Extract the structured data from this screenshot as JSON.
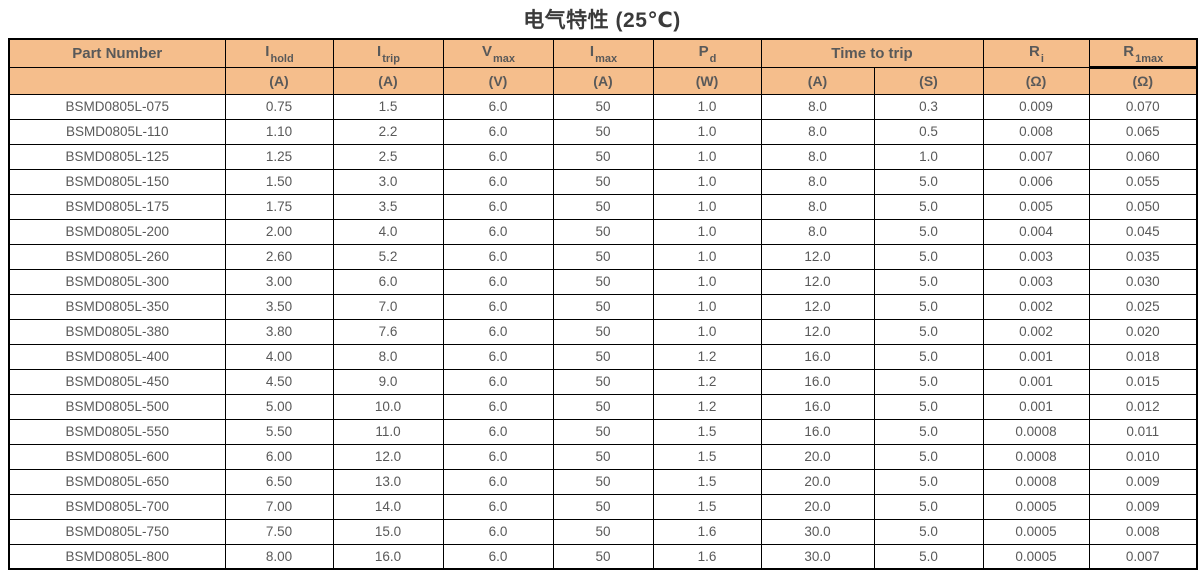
{
  "page": {
    "title": "电气特性 (25℃)"
  },
  "colors": {
    "header_bg": "#F5BE8C",
    "header_text": "#595959",
    "body_text": "#595959",
    "border": "#000000"
  },
  "table": {
    "part_number_header": "Part Number",
    "spec_columns": [
      {
        "symbol": "I",
        "sub": "hold",
        "unit": "(A)"
      },
      {
        "symbol": "I",
        "sub": "trip",
        "unit": "(A)"
      },
      {
        "symbol": "V",
        "sub": "max",
        "unit": "(V)"
      },
      {
        "symbol": "I",
        "sub": "max",
        "unit": "(A)"
      },
      {
        "symbol": "P",
        "sub": "d",
        "unit": "(W)"
      }
    ],
    "time_to_trip": {
      "label": "Time to trip",
      "unit_a": "(A)",
      "unit_s": "(S)"
    },
    "resistance_columns": [
      {
        "symbol": "R",
        "sub": "i",
        "unit": "(Ω)"
      },
      {
        "symbol": "R",
        "sub": "1max",
        "unit": "(Ω)"
      }
    ],
    "rows": [
      [
        "BSMD0805L-075",
        "0.75",
        "1.5",
        "6.0",
        "50",
        "1.0",
        "8.0",
        "0.3",
        "0.009",
        "0.070"
      ],
      [
        "BSMD0805L-110",
        "1.10",
        "2.2",
        "6.0",
        "50",
        "1.0",
        "8.0",
        "0.5",
        "0.008",
        "0.065"
      ],
      [
        "BSMD0805L-125",
        "1.25",
        "2.5",
        "6.0",
        "50",
        "1.0",
        "8.0",
        "1.0",
        "0.007",
        "0.060"
      ],
      [
        "BSMD0805L-150",
        "1.50",
        "3.0",
        "6.0",
        "50",
        "1.0",
        "8.0",
        "5.0",
        "0.006",
        "0.055"
      ],
      [
        "BSMD0805L-175",
        "1.75",
        "3.5",
        "6.0",
        "50",
        "1.0",
        "8.0",
        "5.0",
        "0.005",
        "0.050"
      ],
      [
        "BSMD0805L-200",
        "2.00",
        "4.0",
        "6.0",
        "50",
        "1.0",
        "8.0",
        "5.0",
        "0.004",
        "0.045"
      ],
      [
        "BSMD0805L-260",
        "2.60",
        "5.2",
        "6.0",
        "50",
        "1.0",
        "12.0",
        "5.0",
        "0.003",
        "0.035"
      ],
      [
        "BSMD0805L-300",
        "3.00",
        "6.0",
        "6.0",
        "50",
        "1.0",
        "12.0",
        "5.0",
        "0.003",
        "0.030"
      ],
      [
        "BSMD0805L-350",
        "3.50",
        "7.0",
        "6.0",
        "50",
        "1.0",
        "12.0",
        "5.0",
        "0.002",
        "0.025"
      ],
      [
        "BSMD0805L-380",
        "3.80",
        "7.6",
        "6.0",
        "50",
        "1.0",
        "12.0",
        "5.0",
        "0.002",
        "0.020"
      ],
      [
        "BSMD0805L-400",
        "4.00",
        "8.0",
        "6.0",
        "50",
        "1.2",
        "16.0",
        "5.0",
        "0.001",
        "0.018"
      ],
      [
        "BSMD0805L-450",
        "4.50",
        "9.0",
        "6.0",
        "50",
        "1.2",
        "16.0",
        "5.0",
        "0.001",
        "0.015"
      ],
      [
        "BSMD0805L-500",
        "5.00",
        "10.0",
        "6.0",
        "50",
        "1.2",
        "16.0",
        "5.0",
        "0.001",
        "0.012"
      ],
      [
        "BSMD0805L-550",
        "5.50",
        "11.0",
        "6.0",
        "50",
        "1.5",
        "16.0",
        "5.0",
        "0.0008",
        "0.011"
      ],
      [
        "BSMD0805L-600",
        "6.00",
        "12.0",
        "6.0",
        "50",
        "1.5",
        "20.0",
        "5.0",
        "0.0008",
        "0.010"
      ],
      [
        "BSMD0805L-650",
        "6.50",
        "13.0",
        "6.0",
        "50",
        "1.5",
        "20.0",
        "5.0",
        "0.0008",
        "0.009"
      ],
      [
        "BSMD0805L-700",
        "7.00",
        "14.0",
        "6.0",
        "50",
        "1.5",
        "20.0",
        "5.0",
        "0.0005",
        "0.009"
      ],
      [
        "BSMD0805L-750",
        "7.50",
        "15.0",
        "6.0",
        "50",
        "1.6",
        "30.0",
        "5.0",
        "0.0005",
        "0.008"
      ],
      [
        "BSMD0805L-800",
        "8.00",
        "16.0",
        "6.0",
        "50",
        "1.6",
        "30.0",
        "5.0",
        "0.0005",
        "0.007"
      ]
    ]
  }
}
